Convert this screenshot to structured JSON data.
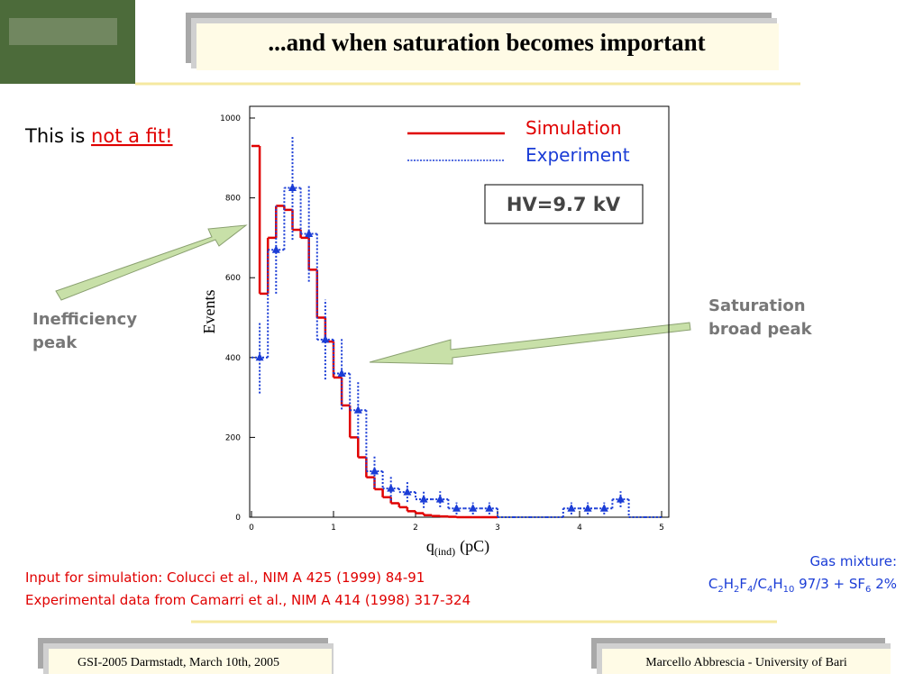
{
  "header": {
    "title": "...and when saturation becomes important"
  },
  "intro": {
    "prefix": "This is ",
    "highlight": "not a fit!"
  },
  "annotations": {
    "inefficiency": [
      "Inefficiency",
      "peak"
    ],
    "saturation": [
      "Saturation",
      "broad peak"
    ]
  },
  "references": [
    "Input for simulation: Colucci et al., NIM A 425 (1999) 84-91",
    "Experimental data from Camarri et al., NIM A 414 (1998) 317-324"
  ],
  "gas": {
    "heading": "Gas mixture:",
    "formula": [
      {
        "t": "C"
      },
      {
        "s": "2"
      },
      {
        "t": "H"
      },
      {
        "s": "2"
      },
      {
        "t": "F"
      },
      {
        "s": "4"
      },
      {
        "t": "/C"
      },
      {
        "s": "4"
      },
      {
        "t": "H"
      },
      {
        "s": "10"
      },
      {
        "t": " 97/3 + SF"
      },
      {
        "s": "6"
      },
      {
        "t": " 2%"
      }
    ]
  },
  "footer": {
    "left": "GSI-2005 Darmstadt, March 10th, 2005",
    "right": "Marcello Abbrescia - University of Bari"
  },
  "chart_data": {
    "type": "histogram",
    "y_label": "Events",
    "x_label": {
      "main": "q",
      "sub": "(ind)",
      "unit": "(pC)"
    },
    "annotation": "HV=9.7 kV",
    "xlim": [
      0,
      5
    ],
    "xticks": [
      0,
      1,
      2,
      3,
      4,
      5
    ],
    "ylim": [
      0,
      1000
    ],
    "yticks": [
      0,
      200,
      400,
      600,
      800,
      1000
    ],
    "series": [
      {
        "name": "Simulation",
        "color": "#e00000",
        "style": "solid",
        "bins": [
          0,
          0.1,
          0.2,
          0.3,
          0.4,
          0.5,
          0.6,
          0.7,
          0.8,
          0.9,
          1.0,
          1.1,
          1.2,
          1.3,
          1.4,
          1.5,
          1.6,
          1.7,
          1.8,
          1.9,
          2.0,
          2.1,
          2.2,
          2.3,
          2.4,
          2.5,
          2.6,
          2.7,
          2.8,
          2.9,
          3.0
        ],
        "values": [
          930,
          560,
          700,
          780,
          770,
          720,
          700,
          620,
          500,
          440,
          350,
          280,
          200,
          150,
          100,
          70,
          50,
          35,
          25,
          15,
          10,
          5,
          3,
          2,
          1,
          0,
          0,
          0,
          0,
          0
        ]
      },
      {
        "name": "Experiment",
        "color": "#1a3cd6",
        "style": "dotted",
        "bins": [
          0,
          0.2,
          0.4,
          0.6,
          0.8,
          1.0,
          1.2,
          1.4,
          1.6,
          1.8,
          2.0,
          2.2,
          2.4,
          2.6,
          2.8,
          3.0,
          3.2,
          3.4,
          3.6,
          3.8,
          4.0,
          4.2,
          4.4,
          4.6,
          4.8,
          5.0
        ],
        "values": [
          400,
          670,
          825,
          710,
          445,
          360,
          268,
          115,
          72,
          63,
          45,
          45,
          22,
          22,
          22,
          0,
          0,
          0,
          0,
          22,
          22,
          22,
          45,
          0,
          0
        ],
        "errors": [
          90,
          110,
          130,
          120,
          100,
          90,
          70,
          40,
          30,
          25,
          22,
          20,
          15,
          15,
          15,
          0,
          0,
          0,
          0,
          15,
          15,
          15,
          20,
          0,
          0
        ]
      }
    ]
  }
}
